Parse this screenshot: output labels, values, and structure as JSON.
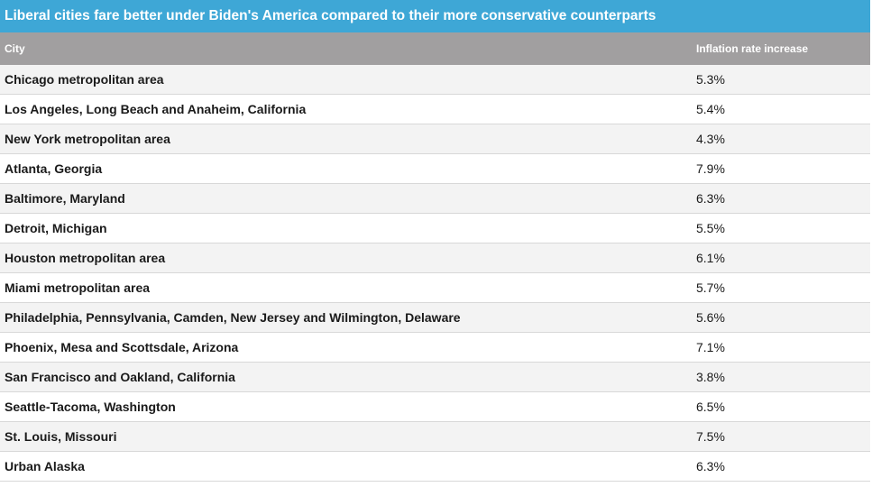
{
  "chart_data": {
    "type": "table",
    "title": "Liberal cities fare better under Biden's America compared to their more conservative counterparts",
    "columns": [
      "City",
      "Inflation rate increase"
    ],
    "rows": [
      {
        "city": "Chicago metropolitan area",
        "rate": "5.3%",
        "value": 5.3
      },
      {
        "city": "Los Angeles, Long Beach and Anaheim, California",
        "rate": "5.4%",
        "value": 5.4
      },
      {
        "city": "New York metropolitan area",
        "rate": "4.3%",
        "value": 4.3
      },
      {
        "city": "Atlanta, Georgia",
        "rate": "7.9%",
        "value": 7.9
      },
      {
        "city": "Baltimore, Maryland",
        "rate": "6.3%",
        "value": 6.3
      },
      {
        "city": "Detroit, Michigan",
        "rate": "5.5%",
        "value": 5.5
      },
      {
        "city": "Houston metropolitan area",
        "rate": "6.1%",
        "value": 6.1
      },
      {
        "city": "Miami metropolitan area",
        "rate": "5.7%",
        "value": 5.7
      },
      {
        "city": "Philadelphia, Pennsylvania, Camden, New Jersey and Wilmington, Delaware",
        "rate": "5.6%",
        "value": 5.6
      },
      {
        "city": "Phoenix, Mesa and Scottsdale, Arizona",
        "rate": "7.1%",
        "value": 7.1
      },
      {
        "city": "San Francisco and Oakland, California",
        "rate": "3.8%",
        "value": 3.8
      },
      {
        "city": "Seattle-Tacoma, Washington",
        "rate": "6.5%",
        "value": 6.5
      },
      {
        "city": "St. Louis, Missouri",
        "rate": "7.5%",
        "value": 7.5
      },
      {
        "city": "Urban Alaska",
        "rate": "6.3%",
        "value": 6.3
      }
    ]
  },
  "colors": {
    "title_bar": "#3ea7d6",
    "header_row": "#a19fa0",
    "row_odd": "#f3f3f3",
    "row_even": "#ffffff"
  }
}
